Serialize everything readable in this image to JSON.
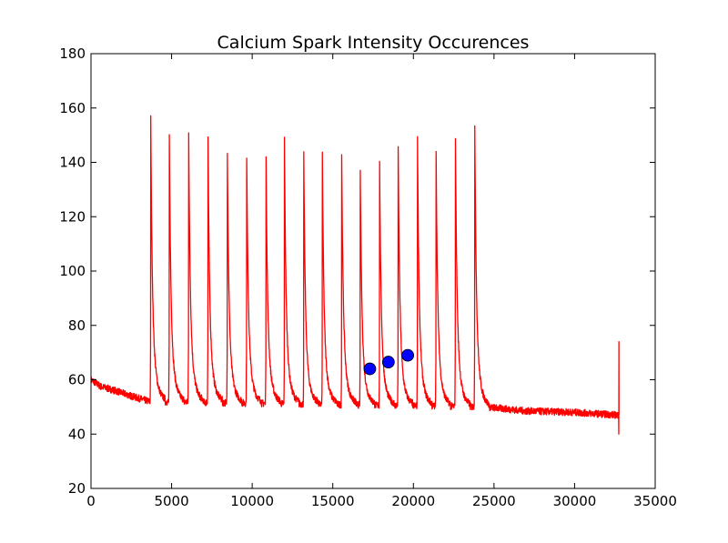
{
  "chart_data": {
    "type": "line",
    "title": "Calcium Spark Intensity Occurences",
    "xlabel": "",
    "ylabel": "",
    "xlim": [
      0,
      35000
    ],
    "ylim": [
      20,
      180
    ],
    "xticks": [
      0,
      5000,
      10000,
      15000,
      20000,
      25000,
      30000,
      35000
    ],
    "yticks": [
      20,
      40,
      60,
      80,
      100,
      120,
      140,
      160,
      180
    ],
    "grid": false,
    "legend": "none",
    "colors": {
      "line": "#ff0000",
      "markers": "#0000ff",
      "marker_edge": "#000000"
    },
    "series": [
      {
        "style": "line",
        "baseline": [
          [
            0,
            60
          ],
          [
            600,
            57.5
          ],
          [
            1500,
            56
          ],
          [
            2500,
            54
          ],
          [
            3600,
            52
          ],
          [
            24500,
            50
          ],
          [
            27000,
            48.5
          ],
          [
            30000,
            48
          ],
          [
            32700,
            47
          ]
        ],
        "spikes": [
          {
            "x": 3700,
            "peak": 164
          },
          {
            "x": 4850,
            "peak": 158
          },
          {
            "x": 6050,
            "peak": 161
          },
          {
            "x": 7250,
            "peak": 158
          },
          {
            "x": 8450,
            "peak": 153
          },
          {
            "x": 9650,
            "peak": 151
          },
          {
            "x": 10850,
            "peak": 150
          },
          {
            "x": 12000,
            "peak": 149
          },
          {
            "x": 13200,
            "peak": 143
          },
          {
            "x": 14350,
            "peak": 145
          },
          {
            "x": 15550,
            "peak": 145
          },
          {
            "x": 16700,
            "peak": 141
          },
          {
            "x": 17900,
            "peak": 143
          },
          {
            "x": 19050,
            "peak": 151
          },
          {
            "x": 20250,
            "peak": 155
          },
          {
            "x": 21400,
            "peak": 152
          },
          {
            "x": 22600,
            "peak": 157
          },
          {
            "x": 23800,
            "peak": 162
          }
        ],
        "end_spike": {
          "x": 32750,
          "peak": 74,
          "min": 40
        }
      },
      {
        "style": "markers",
        "x": [
          17300,
          18450,
          19650
        ],
        "y": [
          64,
          66.5,
          69
        ]
      }
    ]
  }
}
